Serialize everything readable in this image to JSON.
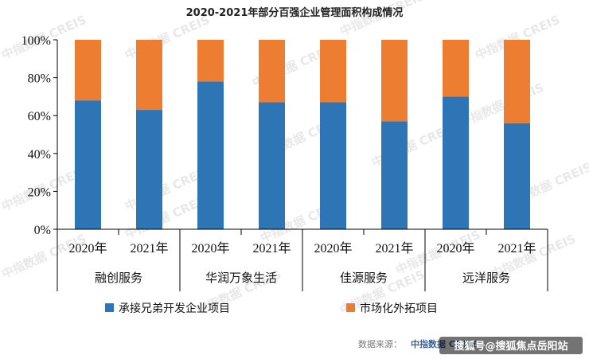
{
  "chart_data": {
    "type": "bar",
    "stacked": true,
    "title": "2020-2021年部分百强企业管理面积构成情况",
    "categories": [
      "2020年",
      "2021年",
      "2020年",
      "2021年",
      "2020年",
      "2021年",
      "2020年",
      "2021年"
    ],
    "groups": [
      "融创服务",
      "华润万象生活",
      "佳源服务",
      "远洋服务"
    ],
    "series": [
      {
        "name": "承接兄弟开发企业项目",
        "color": "#2e75b6",
        "values": [
          68,
          63,
          78,
          67,
          67,
          57,
          70,
          56
        ]
      },
      {
        "name": "市场化外拓项目",
        "color": "#ed7d31",
        "values": [
          32,
          37,
          22,
          33,
          33,
          43,
          30,
          44
        ]
      }
    ],
    "yticks": [
      "0%",
      "20%",
      "40%",
      "60%",
      "80%",
      "100%"
    ],
    "ylim": [
      0,
      100
    ],
    "legend_position": "bottom"
  },
  "source_label": "数据来源：",
  "source_brand": "中指数据 CREIS",
  "sohu_badge": "搜狐号@搜狐焦点岳阳站",
  "watermark_text": "中指数据 CREIS"
}
